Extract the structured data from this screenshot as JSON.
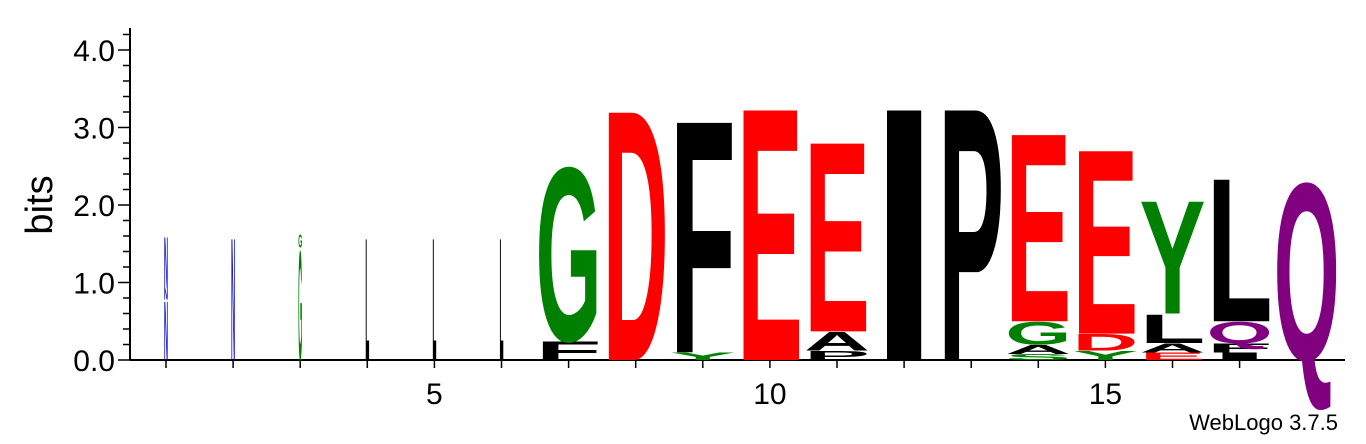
{
  "colors": {
    "red": "#ff0000",
    "black": "#000000",
    "green": "#008000",
    "blue": "#0000cc",
    "purple": "#800080"
  },
  "chart_data": {
    "type": "sequence-logo",
    "title": "",
    "xlabel": "",
    "ylabel": "bits",
    "ylim": [
      0,
      4.3
    ],
    "yticks": [
      "0.0",
      "1.0",
      "2.0",
      "3.0",
      "4.0"
    ],
    "xticks": [
      "5",
      "10",
      "15"
    ],
    "credit": "WebLogo 3.7.5",
    "positions": [
      {
        "pos": 1,
        "stack": [
          {
            "aa": "N",
            "bits": 0.78,
            "color": "blue"
          },
          {
            "aa": "N",
            "bits": 0.15,
            "color": "blue"
          },
          {
            "aa": "N",
            "bits": 0.68,
            "color": "blue"
          }
        ]
      },
      {
        "pos": 2,
        "stack": [
          {
            "aa": "N",
            "bits": 1.62,
            "color": "blue"
          }
        ]
      },
      {
        "pos": 3,
        "stack": [
          {
            "aa": "G",
            "bits": 1.45,
            "color": "green"
          },
          {
            "aa": "G",
            "bits": 0.17,
            "color": "green"
          }
        ]
      },
      {
        "pos": 4,
        "stack": [
          {
            "aa": "L",
            "bits": 1.62,
            "color": "black"
          }
        ]
      },
      {
        "pos": 5,
        "stack": [
          {
            "aa": "L",
            "bits": 1.62,
            "color": "black"
          }
        ]
      },
      {
        "pos": 6,
        "stack": [
          {
            "aa": "L",
            "bits": 1.62,
            "color": "black"
          }
        ]
      },
      {
        "pos": 7,
        "stack": [
          {
            "aa": "F",
            "bits": 0.25,
            "color": "black"
          },
          {
            "aa": "G",
            "bits": 2.3,
            "color": "green"
          }
        ]
      },
      {
        "pos": 8,
        "stack": [
          {
            "aa": "D",
            "bits": 3.32,
            "color": "red"
          }
        ]
      },
      {
        "pos": 9,
        "stack": [
          {
            "aa": "Y",
            "bits": 0.1,
            "color": "green"
          },
          {
            "aa": "F",
            "bits": 3.08,
            "color": "black"
          }
        ]
      },
      {
        "pos": 10,
        "stack": [
          {
            "aa": "E",
            "bits": 3.35,
            "color": "red"
          }
        ]
      },
      {
        "pos": 11,
        "stack": [
          {
            "aa": "P",
            "bits": 0.12,
            "color": "black"
          },
          {
            "aa": "A",
            "bits": 0.25,
            "color": "black"
          },
          {
            "aa": "E",
            "bits": 2.52,
            "color": "red"
          }
        ]
      },
      {
        "pos": 12,
        "stack": [
          {
            "aa": "I",
            "bits": 3.35,
            "color": "black"
          }
        ]
      },
      {
        "pos": 13,
        "stack": [
          {
            "aa": "P",
            "bits": 3.35,
            "color": "black"
          }
        ]
      },
      {
        "pos": 14,
        "stack": [
          {
            "aa": "S",
            "bits": 0.08,
            "color": "green"
          },
          {
            "aa": "A",
            "bits": 0.12,
            "color": "black"
          },
          {
            "aa": "G",
            "bits": 0.3,
            "color": "green"
          },
          {
            "aa": "E",
            "bits": 2.5,
            "color": "red"
          }
        ]
      },
      {
        "pos": 15,
        "stack": [
          {
            "aa": "Y",
            "bits": 0.12,
            "color": "green"
          },
          {
            "aa": "D",
            "bits": 0.22,
            "color": "red"
          },
          {
            "aa": "E",
            "bits": 2.45,
            "color": "red"
          }
        ]
      },
      {
        "pos": 16,
        "stack": [
          {
            "aa": "E",
            "bits": 0.1,
            "color": "red"
          },
          {
            "aa": "A",
            "bits": 0.12,
            "color": "black"
          },
          {
            "aa": "L",
            "bits": 0.38,
            "color": "black"
          },
          {
            "aa": "Y",
            "bits": 1.5,
            "color": "green"
          }
        ]
      },
      {
        "pos": 17,
        "stack": [
          {
            "aa": "I",
            "bits": 0.1,
            "color": "black"
          },
          {
            "aa": "F",
            "bits": 0.12,
            "color": "black"
          },
          {
            "aa": "Q",
            "bits": 0.28,
            "color": "purple"
          },
          {
            "aa": "L",
            "bits": 1.9,
            "color": "black"
          }
        ]
      },
      {
        "pos": 18,
        "stack": [
          {
            "aa": "Q",
            "bits": 2.35,
            "color": "purple"
          }
        ]
      }
    ]
  }
}
